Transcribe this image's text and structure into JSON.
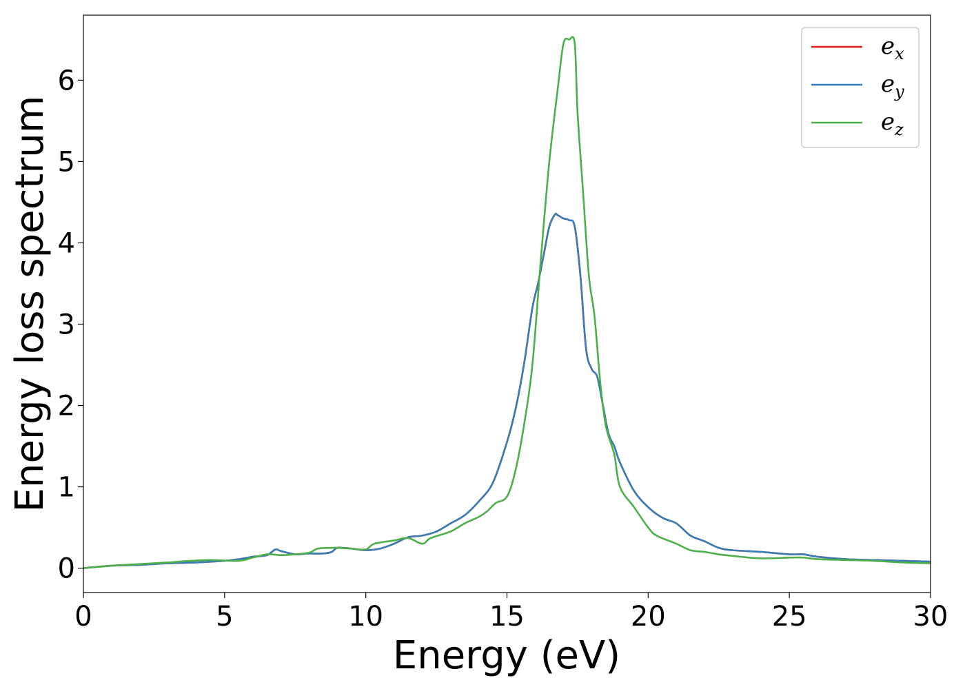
{
  "chart_data": {
    "type": "line",
    "title": "",
    "xlabel": "Energy (eV)",
    "ylabel": "Energy loss spectrum",
    "xlim": [
      0,
      30
    ],
    "ylim": [
      -0.3,
      6.8
    ],
    "xticks": [
      0,
      5,
      10,
      15,
      20,
      25,
      30
    ],
    "yticks": [
      0,
      1,
      2,
      3,
      4,
      5,
      6
    ],
    "grid": false,
    "legend": {
      "placement": "top-right",
      "entries": [
        {
          "label_base": "e",
          "label_sub": "x",
          "color": "#e41a1c"
        },
        {
          "label_base": "e",
          "label_sub": "y",
          "color": "#377eb8"
        },
        {
          "label_base": "e",
          "label_sub": "z",
          "color": "#4daf4a"
        }
      ]
    },
    "series": [
      {
        "name": "e_x",
        "color": "#e41a1c",
        "x": [
          0,
          1,
          2,
          3,
          4,
          5,
          5.5,
          6,
          6.5,
          6.8,
          7,
          7.5,
          8,
          8.5,
          8.8,
          9,
          9.5,
          10,
          10.5,
          11,
          11.5,
          12,
          12.5,
          13,
          13.5,
          14,
          14.5,
          15,
          15.3,
          15.6,
          15.9,
          16.1,
          16.3,
          16.5,
          16.7,
          16.8,
          17,
          17.2,
          17.4,
          17.6,
          17.8,
          18,
          18.2,
          18.4,
          18.6,
          18.8,
          19,
          19.5,
          20,
          20.5,
          21,
          21.5,
          22,
          22.5,
          23,
          24,
          25,
          25.5,
          26,
          27,
          28,
          29,
          30
        ],
        "values": [
          0.0,
          0.03,
          0.04,
          0.06,
          0.07,
          0.09,
          0.11,
          0.14,
          0.16,
          0.23,
          0.21,
          0.17,
          0.18,
          0.18,
          0.2,
          0.25,
          0.24,
          0.22,
          0.24,
          0.3,
          0.38,
          0.4,
          0.45,
          0.55,
          0.65,
          0.82,
          1.05,
          1.55,
          1.95,
          2.5,
          3.2,
          3.5,
          3.85,
          4.2,
          4.35,
          4.34,
          4.3,
          4.28,
          4.2,
          3.6,
          2.7,
          2.45,
          2.35,
          2.0,
          1.65,
          1.5,
          1.3,
          0.95,
          0.75,
          0.62,
          0.55,
          0.4,
          0.33,
          0.25,
          0.22,
          0.2,
          0.17,
          0.17,
          0.14,
          0.11,
          0.1,
          0.09,
          0.08
        ]
      },
      {
        "name": "e_y",
        "color": "#377eb8",
        "x": [
          0,
          1,
          2,
          3,
          4,
          5,
          5.5,
          6,
          6.5,
          6.8,
          7,
          7.5,
          8,
          8.5,
          8.8,
          9,
          9.5,
          10,
          10.5,
          11,
          11.5,
          12,
          12.5,
          13,
          13.5,
          14,
          14.5,
          15,
          15.3,
          15.6,
          15.9,
          16.1,
          16.3,
          16.5,
          16.7,
          16.8,
          17,
          17.2,
          17.4,
          17.6,
          17.8,
          18,
          18.2,
          18.4,
          18.6,
          18.8,
          19,
          19.5,
          20,
          20.5,
          21,
          21.5,
          22,
          22.5,
          23,
          24,
          25,
          25.5,
          26,
          27,
          28,
          29,
          30
        ],
        "values": [
          0.0,
          0.03,
          0.04,
          0.06,
          0.07,
          0.09,
          0.11,
          0.14,
          0.16,
          0.23,
          0.21,
          0.17,
          0.18,
          0.18,
          0.2,
          0.25,
          0.24,
          0.22,
          0.24,
          0.3,
          0.38,
          0.4,
          0.45,
          0.55,
          0.65,
          0.82,
          1.05,
          1.55,
          1.95,
          2.5,
          3.2,
          3.5,
          3.85,
          4.2,
          4.35,
          4.34,
          4.3,
          4.28,
          4.2,
          3.6,
          2.7,
          2.45,
          2.35,
          2.0,
          1.65,
          1.5,
          1.3,
          0.95,
          0.75,
          0.62,
          0.55,
          0.4,
          0.33,
          0.25,
          0.22,
          0.2,
          0.17,
          0.17,
          0.14,
          0.11,
          0.1,
          0.09,
          0.08
        ]
      },
      {
        "name": "e_z",
        "color": "#4daf4a",
        "x": [
          0,
          1,
          2,
          3,
          3.8,
          4.5,
          5.5,
          6,
          6.5,
          7,
          7.5,
          8,
          8.3,
          8.8,
          9,
          9.5,
          10,
          10.3,
          11,
          11.5,
          12,
          12.3,
          13,
          13.5,
          14,
          14.3,
          14.6,
          15,
          15.3,
          15.6,
          15.9,
          16.2,
          16.5,
          16.8,
          17,
          17.2,
          17.4,
          17.5,
          17.7,
          17.9,
          18.1,
          18.3,
          18.5,
          18.8,
          19,
          19.5,
          20,
          20.3,
          21,
          21.5,
          22,
          22.5,
          23,
          24,
          25,
          25.5,
          26,
          27,
          28,
          29,
          30
        ],
        "values": [
          0.0,
          0.03,
          0.05,
          0.07,
          0.09,
          0.1,
          0.09,
          0.13,
          0.17,
          0.16,
          0.17,
          0.19,
          0.24,
          0.25,
          0.25,
          0.24,
          0.23,
          0.3,
          0.34,
          0.37,
          0.3,
          0.37,
          0.45,
          0.55,
          0.63,
          0.7,
          0.8,
          0.88,
          1.2,
          1.75,
          2.5,
          3.8,
          5.0,
          5.9,
          6.45,
          6.5,
          6.45,
          5.6,
          4.6,
          3.6,
          3.1,
          2.3,
          1.75,
          1.4,
          1.0,
          0.75,
          0.5,
          0.4,
          0.3,
          0.22,
          0.2,
          0.17,
          0.15,
          0.12,
          0.13,
          0.13,
          0.11,
          0.1,
          0.09,
          0.07,
          0.06
        ]
      }
    ]
  }
}
